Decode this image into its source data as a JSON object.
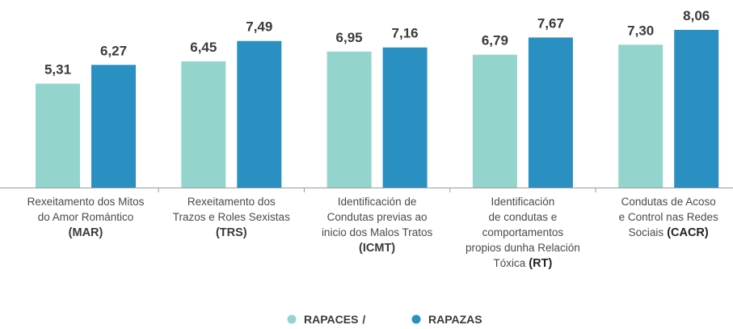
{
  "chart_data": {
    "type": "bar",
    "categories": [
      {
        "lines": [
          "Rexeitamento dos Mitos",
          "do Amor Romántico"
        ],
        "code": "(MAR)",
        "code_inline": false
      },
      {
        "lines": [
          "Rexeitamento dos",
          "Trazos e Roles Sexistas"
        ],
        "code": "(TRS)",
        "code_inline": false
      },
      {
        "lines": [
          "Identificación de",
          "Condutas previas ao",
          "inicio dos Malos Tratos"
        ],
        "code": "(ICMT)",
        "code_inline": false
      },
      {
        "lines": [
          "Identificación",
          "de condutas e",
          "comportamentos",
          "propios dunha Relación",
          "Tóxica"
        ],
        "code": "(RT)",
        "code_inline": true
      },
      {
        "lines": [
          "Condutas de Acoso",
          "e Control nas Redes",
          "Sociais"
        ],
        "code": "(CACR)",
        "code_inline": true
      }
    ],
    "series": [
      {
        "name": "RAPACES",
        "color": "#93d5cc",
        "values": [
          5.31,
          6.45,
          6.95,
          6.79,
          7.3
        ],
        "value_labels": [
          "5,31",
          "6,45",
          "6,95",
          "6,79",
          "7,30"
        ]
      },
      {
        "name": "RAPAZAS",
        "color": "#2a8fc1",
        "values": [
          6.27,
          7.49,
          7.16,
          7.67,
          8.06
        ],
        "value_labels": [
          "6,27",
          "7,49",
          "7,16",
          "7,67",
          "8,06"
        ]
      }
    ],
    "legend_separator": "/"
  }
}
